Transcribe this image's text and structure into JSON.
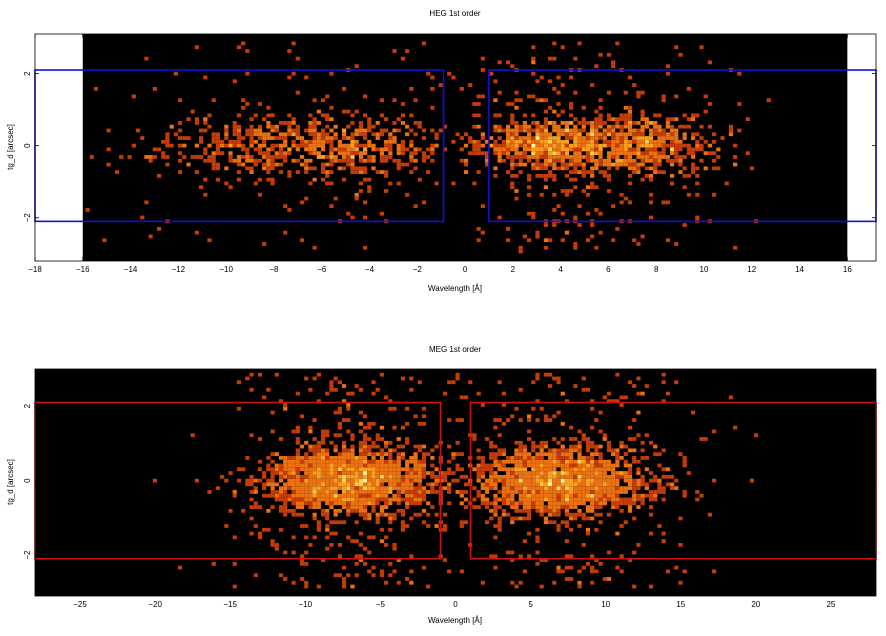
{
  "chart_data": [
    {
      "type": "heatmap",
      "title": "HEG 1st order",
      "xlabel": "Wavelength [Å]",
      "ylabel": "tg_d [arcsec]",
      "xlim": [
        -18,
        17.2
      ],
      "ylim": [
        -3.2,
        3.1
      ],
      "data_xlim": [
        -16,
        16
      ],
      "xticks": [
        -18,
        -16,
        -14,
        -12,
        -10,
        -8,
        -6,
        -4,
        -2,
        0,
        2,
        4,
        6,
        8,
        10,
        12,
        14,
        16
      ],
      "yticks": [
        -2,
        0,
        2
      ],
      "region_color": "#1010dd",
      "regions": [
        {
          "x": [
            -18,
            -0.9
          ],
          "y": [
            -2.1,
            2.1
          ]
        },
        {
          "x": [
            1.0,
            17.2
          ],
          "y": [
            -2.1,
            2.1
          ]
        }
      ],
      "clusters": [
        {
          "x_center": -6.5,
          "x_sd": 3.0,
          "y_sd": 0.45,
          "weight": 1.0
        },
        {
          "x_center": 3.3,
          "x_sd": 1.3,
          "y_sd": 0.35,
          "weight": 0.7
        },
        {
          "x_center": 7.0,
          "x_sd": 1.8,
          "y_sd": 0.45,
          "weight": 0.9
        }
      ]
    },
    {
      "type": "heatmap",
      "title": "MEG 1st order",
      "xlabel": "Wavelength [Å]",
      "ylabel": "tg_d [arcsec]",
      "xlim": [
        -28,
        28
      ],
      "ylim": [
        -3.1,
        3.0
      ],
      "xticks": [
        -25,
        -20,
        -15,
        -10,
        -5,
        0,
        5,
        10,
        15,
        20,
        25
      ],
      "yticks": [
        -2,
        0,
        2
      ],
      "region_color": "#cc1111",
      "regions": [
        {
          "x": [
            -28,
            -1.0
          ],
          "y": [
            -2.1,
            2.1
          ]
        },
        {
          "x": [
            1.0,
            28
          ],
          "y": [
            -2.1,
            2.1
          ]
        }
      ],
      "clusters": [
        {
          "x_center": -7.2,
          "x_sd": 2.8,
          "y_sd": 0.45,
          "weight": 1.0
        },
        {
          "x_center": 7.0,
          "x_sd": 3.0,
          "y_sd": 0.45,
          "weight": 1.0
        }
      ]
    }
  ]
}
